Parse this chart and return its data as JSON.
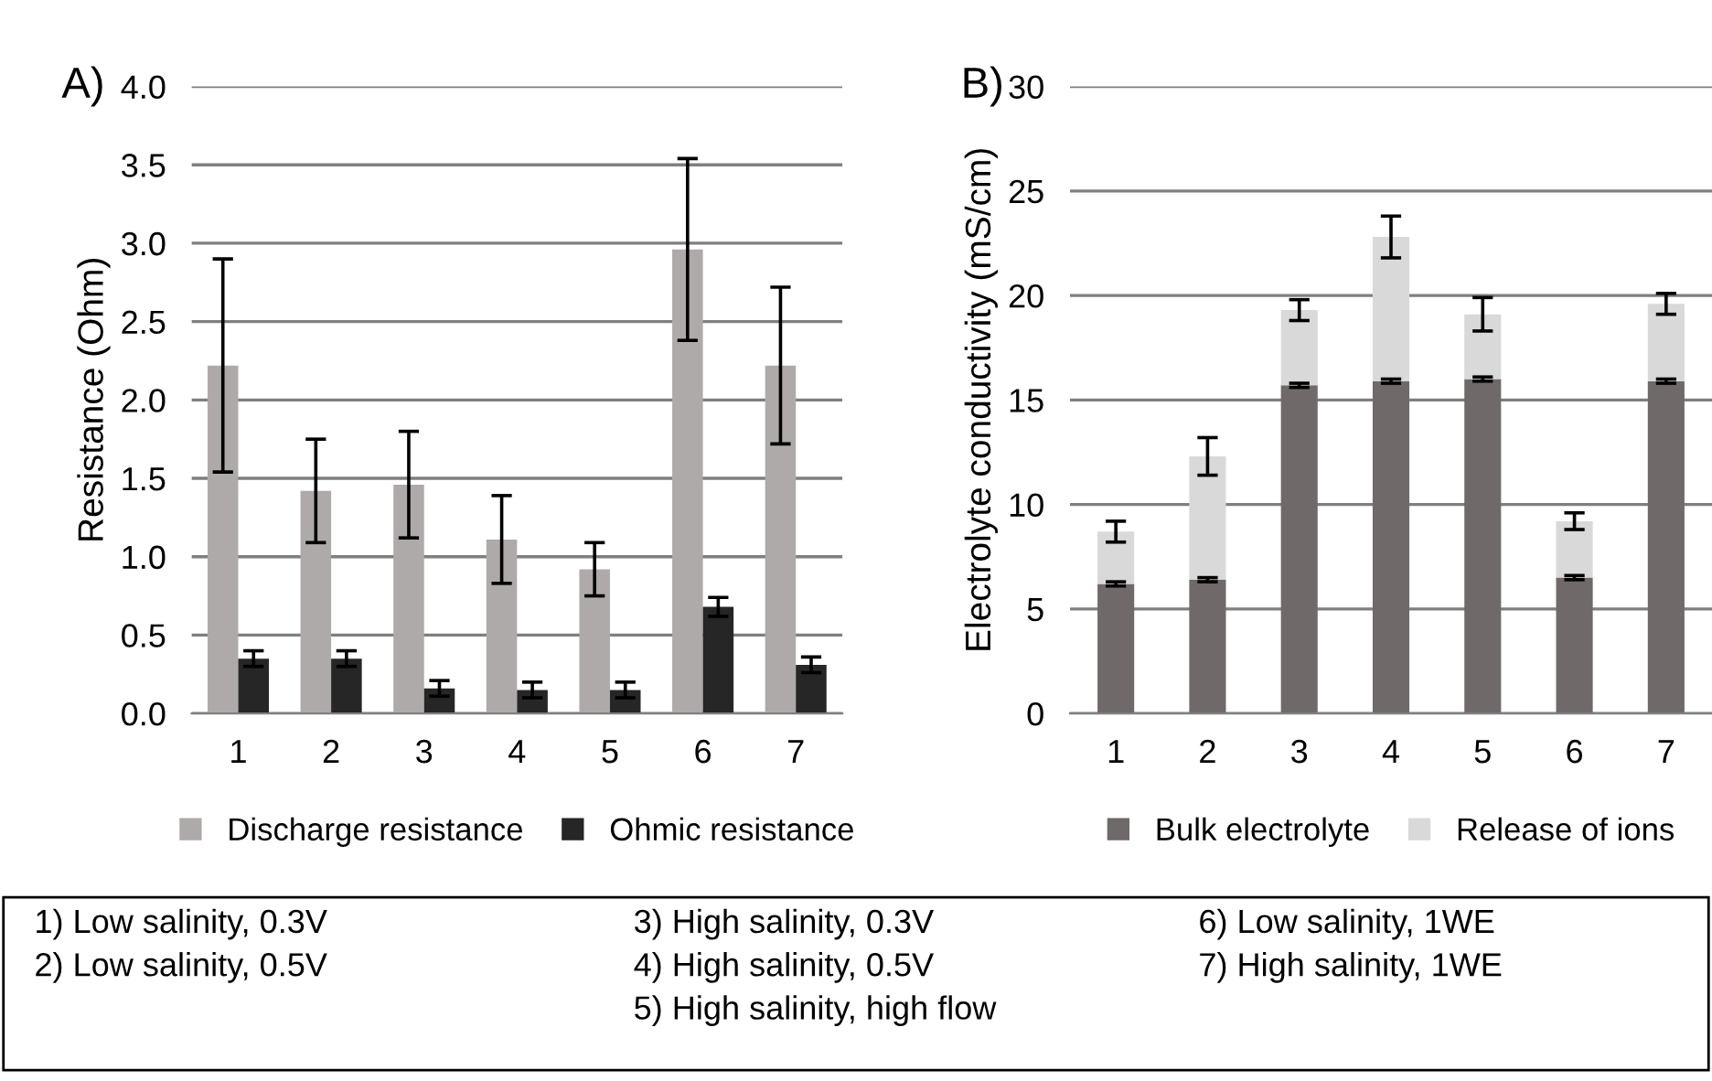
{
  "chart_data": [
    {
      "type": "bar",
      "title": "A)",
      "ylabel": "Resistance (Ohm)",
      "categories": [
        "1",
        "2",
        "3",
        "4",
        "5",
        "6",
        "7"
      ],
      "series": [
        {
          "name": "Discharge resistance",
          "color": "#aeaaaa",
          "values": [
            2.22,
            1.42,
            1.46,
            1.11,
            0.92,
            2.96,
            2.22
          ],
          "errors": [
            0.68,
            0.33,
            0.34,
            0.28,
            0.17,
            0.58,
            0.5
          ]
        },
        {
          "name": "Ohmic resistance",
          "color": "#262626",
          "values": [
            0.35,
            0.35,
            0.16,
            0.15,
            0.15,
            0.68,
            0.31
          ],
          "errors": [
            0.05,
            0.05,
            0.05,
            0.05,
            0.05,
            0.06,
            0.05
          ]
        }
      ],
      "ylim": [
        0,
        4
      ],
      "yticks": [
        {
          "value": 0,
          "label": "0.0"
        },
        {
          "value": 0.5,
          "label": "0.5"
        },
        {
          "value": 1,
          "label": "1.0"
        },
        {
          "value": 1.5,
          "label": "1.5"
        },
        {
          "value": 2,
          "label": "2.0"
        },
        {
          "value": 2.5,
          "label": "2.5"
        },
        {
          "value": 3,
          "label": "3.0"
        },
        {
          "value": 3.5,
          "label": "3.5"
        },
        {
          "value": 4,
          "label": "4.0"
        }
      ],
      "grid": "y",
      "legend": "bottom"
    },
    {
      "type": "bar",
      "title": "B)",
      "ylabel": "Electrolyte conductivity (mS/cm)",
      "categories": [
        "1",
        "2",
        "3",
        "4",
        "5",
        "6",
        "7"
      ],
      "stacked": true,
      "series": [
        {
          "name": "Bulk electrolyte",
          "color": "#6f6a69",
          "values": [
            6.2,
            6.4,
            15.7,
            15.9,
            16.0,
            6.5,
            15.9
          ],
          "errors": [
            0.1,
            0.1,
            0.1,
            0.1,
            0.1,
            0.1,
            0.1
          ]
        },
        {
          "name": "Release of ions",
          "color": "#d9d9d9",
          "values": [
            2.5,
            5.9,
            3.6,
            6.9,
            3.1,
            2.7,
            3.7
          ],
          "errors": [
            0.5,
            0.9,
            0.5,
            1.0,
            0.8,
            0.4,
            0.5
          ]
        }
      ],
      "ylim": [
        0,
        30
      ],
      "yticks": [
        0,
        5,
        10,
        15,
        20,
        25,
        30
      ],
      "grid": "y",
      "legend": "bottom",
      "annotations": [
        "1) Low salinity, 0.3V",
        "2) Low salinity, 0.5V",
        "3) High salinity, 0.3V",
        "4) High salinity, 0.5V",
        "5) High salinity, high flow",
        "6) Low salinity, 1WE",
        "7) High salinity, 1WE"
      ]
    }
  ]
}
